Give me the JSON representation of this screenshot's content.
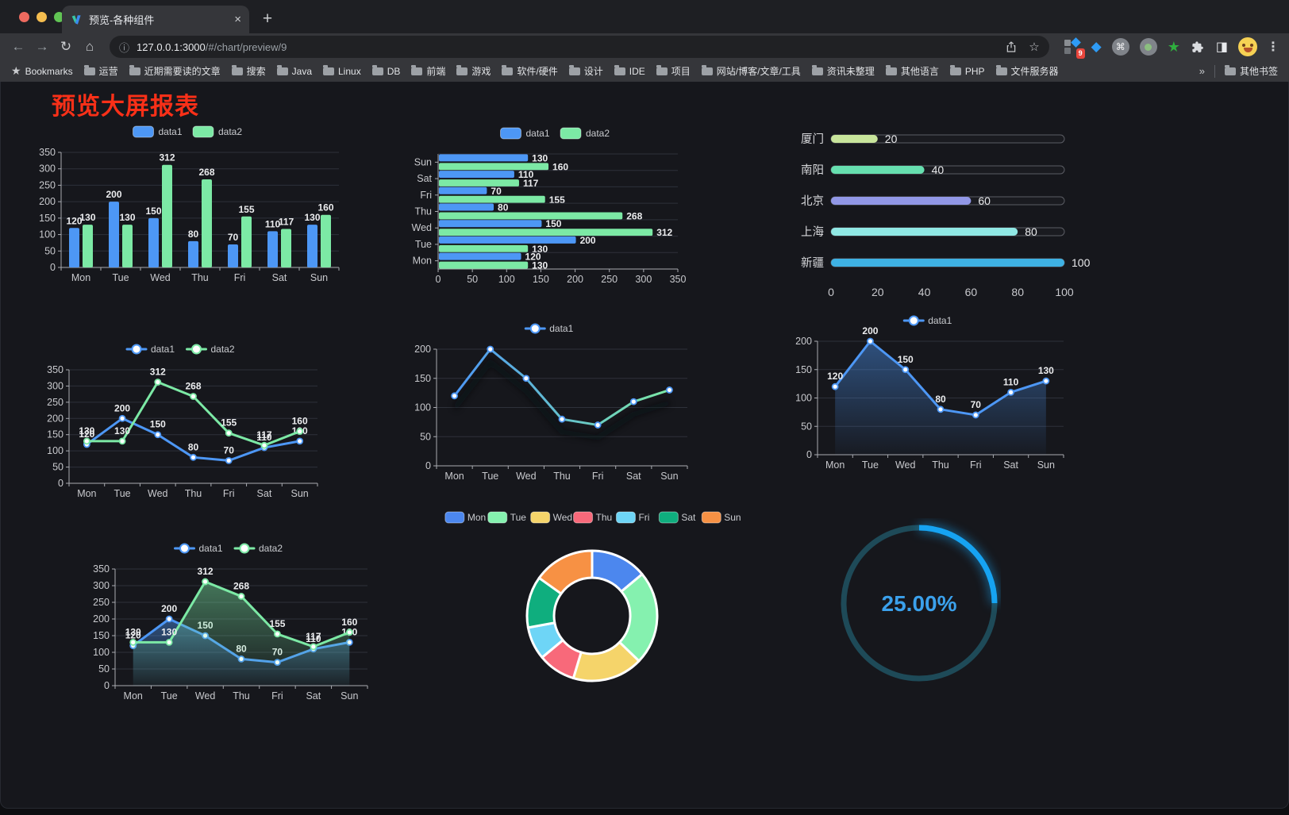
{
  "browser": {
    "tab": {
      "title": "预览-各种组件",
      "close": "×",
      "new_tab": "+"
    },
    "address": {
      "host": "127.0.0.1:3000",
      "path": "/#/chart/preview/9"
    },
    "extensions": {
      "devtools_badge": "9"
    },
    "bookmarks": {
      "label": "Bookmarks",
      "folders": [
        "运营",
        "近期需要读的文章",
        "搜索",
        "Java",
        "Linux",
        "DB",
        "前端",
        "游戏",
        "软件/硬件",
        "设计",
        "IDE",
        "项目",
        "网站/博客/文章/工具",
        "资讯未整理",
        "其他语言",
        "PHP",
        "文件服务器"
      ],
      "overflow": "»",
      "other": "其他书签"
    }
  },
  "icons": {
    "back": "←",
    "forward": "→",
    "reload": "↻",
    "home": "⌂",
    "site_info": "ⓘ",
    "star": "☆",
    "bookmarks_star": "★",
    "menu": "⋮",
    "gem": "◆",
    "command": "⌘",
    "green_star": "★",
    "half_square": "◨"
  },
  "page": {
    "title": "预览大屏报表",
    "title_color": "#F93018"
  },
  "chart_data": [
    {
      "id": "grouped-bar",
      "type": "bar",
      "categories": [
        "Mon",
        "Tue",
        "Wed",
        "Thu",
        "Fri",
        "Sat",
        "Sun"
      ],
      "series": [
        {
          "name": "data1",
          "color": "#4D97F5",
          "values": [
            120,
            200,
            150,
            80,
            70,
            110,
            130
          ]
        },
        {
          "name": "data2",
          "color": "#7CE9A5",
          "values": [
            130,
            130,
            312,
            268,
            155,
            117,
            160
          ]
        }
      ],
      "ylim": [
        0,
        350
      ],
      "ytick_step": 50,
      "value_labels": true,
      "legend_position": "top"
    },
    {
      "id": "grouped-horizontal-bar",
      "type": "hbar",
      "categories": [
        "Mon",
        "Tue",
        "Wed",
        "Thu",
        "Fri",
        "Sat",
        "Sun"
      ],
      "series": [
        {
          "name": "data1",
          "color": "#4D97F5",
          "values": [
            120,
            200,
            150,
            80,
            70,
            110,
            130
          ]
        },
        {
          "name": "data2",
          "color": "#7CE9A5",
          "values": [
            130,
            130,
            312,
            268,
            155,
            117,
            160
          ]
        }
      ],
      "xlim": [
        0,
        350
      ],
      "xtick_step": 50,
      "value_labels": true,
      "legend_position": "top"
    },
    {
      "id": "city-progress",
      "type": "progress",
      "max": 100,
      "xticks": [
        0,
        20,
        40,
        60,
        80,
        100
      ],
      "rows": [
        {
          "label": "厦门",
          "value": 20,
          "color": "#C8E59B"
        },
        {
          "label": "南阳",
          "value": 40,
          "color": "#66DFAF"
        },
        {
          "label": "北京",
          "value": 60,
          "color": "#9197E6"
        },
        {
          "label": "上海",
          "value": 80,
          "color": "#90E8E4"
        },
        {
          "label": "新疆",
          "value": 100,
          "color": "#3EB1E3"
        }
      ]
    },
    {
      "id": "two-series-line",
      "type": "line",
      "categories": [
        "Mon",
        "Tue",
        "Wed",
        "Thu",
        "Fri",
        "Sat",
        "Sun"
      ],
      "series": [
        {
          "name": "data1",
          "color": "#4D97F5",
          "values": [
            120,
            200,
            150,
            80,
            70,
            110,
            130
          ]
        },
        {
          "name": "data2",
          "color": "#7CE9A5",
          "values": [
            130,
            130,
            312,
            268,
            155,
            117,
            160
          ]
        }
      ],
      "ylim": [
        0,
        350
      ],
      "ytick_step": 50,
      "value_labels": true
    },
    {
      "id": "gradient-line",
      "type": "line",
      "categories": [
        "Mon",
        "Tue",
        "Wed",
        "Thu",
        "Fri",
        "Sat",
        "Sun"
      ],
      "series": [
        {
          "name": "data1",
          "color": "#4D97F5",
          "color2": "#7CE9A5",
          "shadow": true,
          "values": [
            120,
            200,
            150,
            80,
            70,
            110,
            130
          ]
        }
      ],
      "ylim": [
        0,
        200
      ],
      "ytick_step": 50,
      "value_labels": false
    },
    {
      "id": "area-line",
      "type": "line",
      "categories": [
        "Mon",
        "Tue",
        "Wed",
        "Thu",
        "Fri",
        "Sat",
        "Sun"
      ],
      "series": [
        {
          "name": "data1",
          "color": "#4D97F5",
          "area": true,
          "values": [
            120,
            200,
            150,
            80,
            70,
            110,
            130
          ]
        }
      ],
      "ylim": [
        0,
        200
      ],
      "ytick_step": 50,
      "value_labels": true
    },
    {
      "id": "two-series-area-line",
      "type": "line",
      "categories": [
        "Mon",
        "Tue",
        "Wed",
        "Thu",
        "Fri",
        "Sat",
        "Sun"
      ],
      "series": [
        {
          "name": "data1",
          "color": "#4D97F5",
          "area": true,
          "values": [
            120,
            200,
            150,
            80,
            70,
            110,
            130
          ]
        },
        {
          "name": "data2",
          "color": "#7CE9A5",
          "area": true,
          "values": [
            130,
            130,
            312,
            268,
            155,
            117,
            160
          ]
        }
      ],
      "ylim": [
        0,
        350
      ],
      "ytick_step": 50,
      "value_labels": true
    },
    {
      "id": "weekday-donut",
      "type": "donut",
      "categories": [
        "Mon",
        "Tue",
        "Wed",
        "Thu",
        "Fri",
        "Sat",
        "Sun"
      ],
      "values": [
        120,
        200,
        150,
        80,
        70,
        110,
        130
      ],
      "colors": [
        "#4C87EE",
        "#85F1AF",
        "#F5D46A",
        "#F8697A",
        "#6ED5F6",
        "#0FAE7E",
        "#F79144"
      ]
    },
    {
      "id": "percent-gauge",
      "type": "gauge",
      "value": 25,
      "label": "25.00%",
      "color": "#16A3F2",
      "track": "#1E4A58",
      "text_color": "#3BA1EC"
    }
  ]
}
